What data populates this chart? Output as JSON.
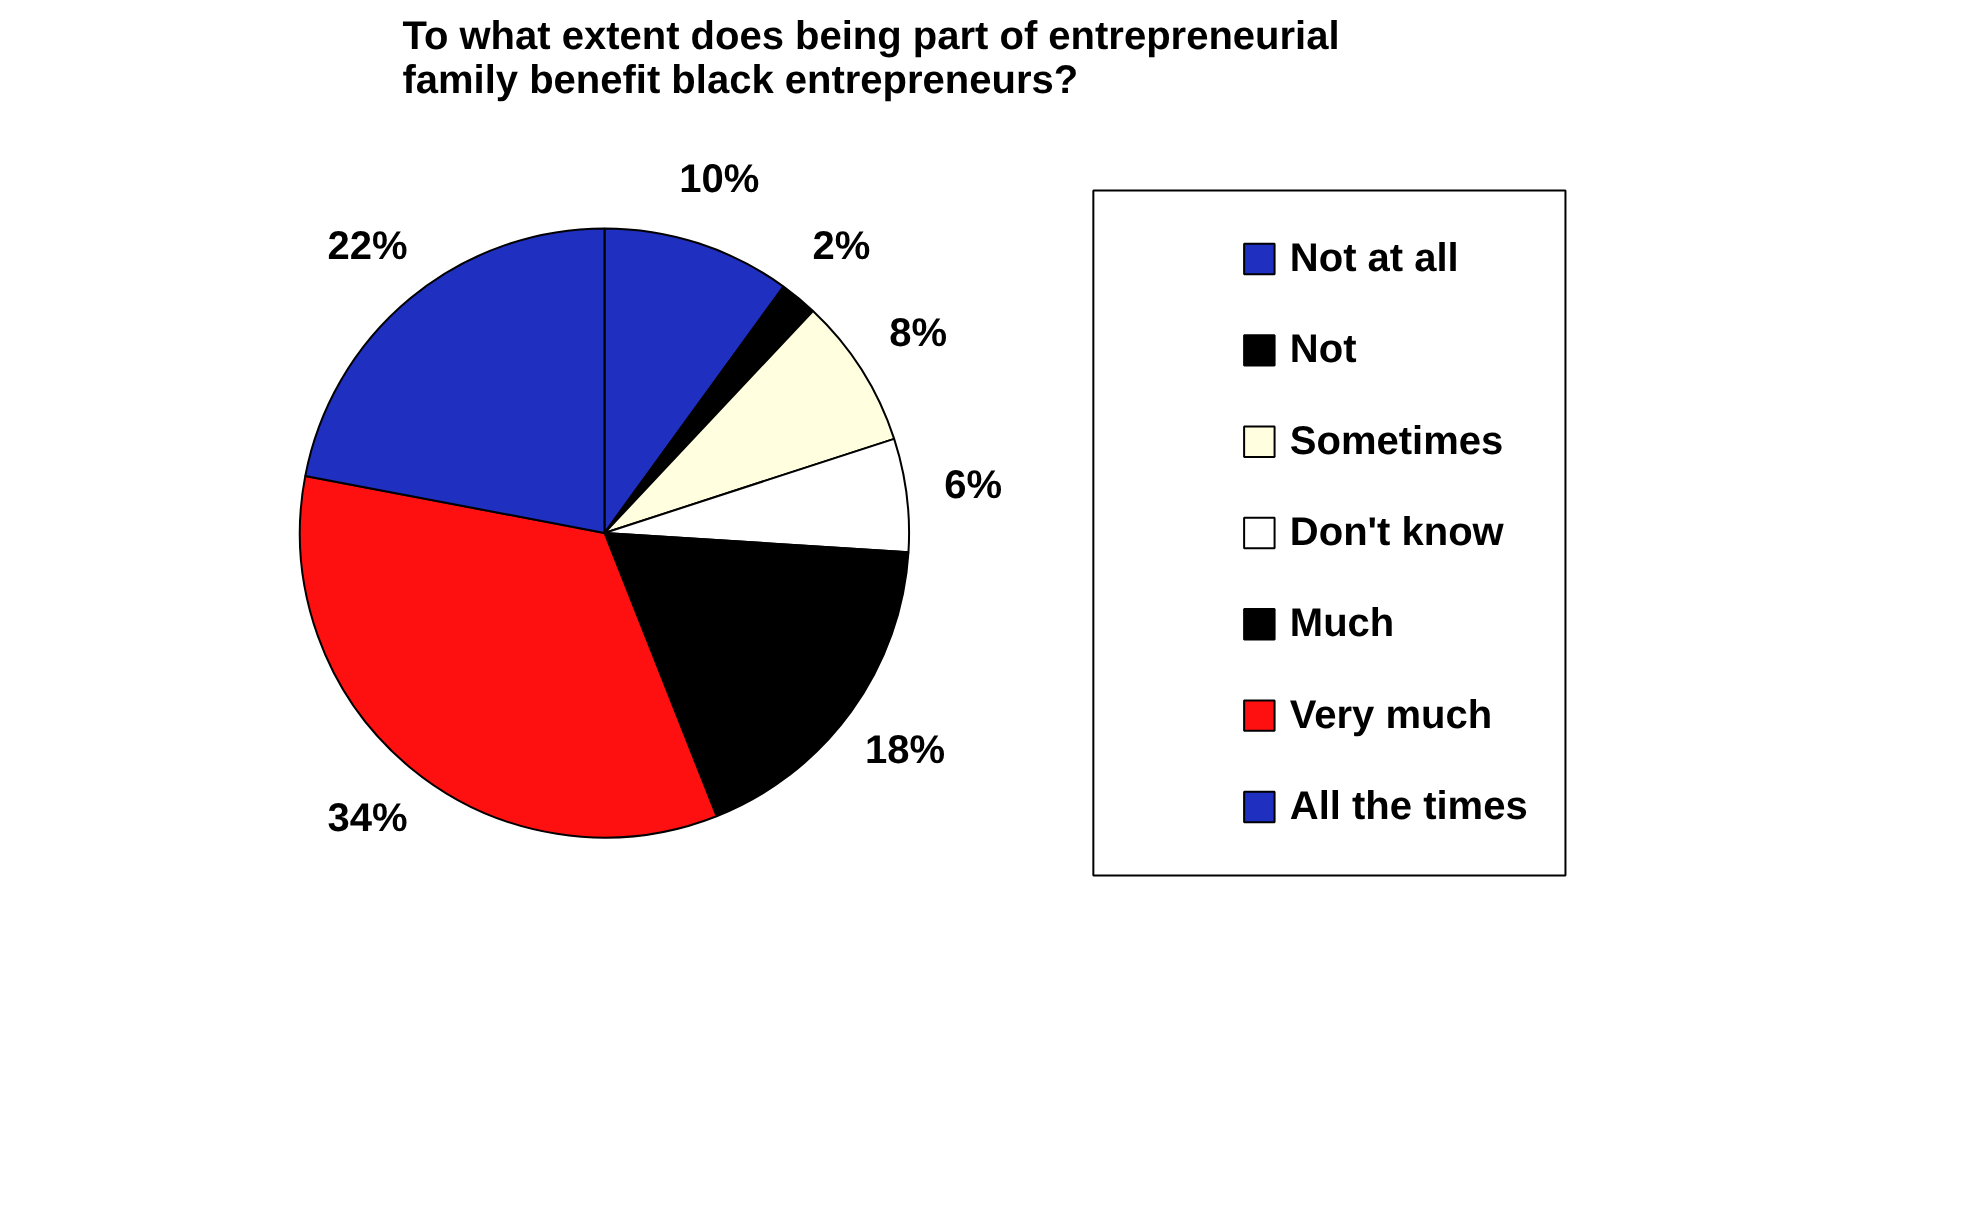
{
  "chart_data": {
    "type": "pie",
    "title": "To what extent does being part of entrepreneurial family benefit black entrepreneurs?",
    "categories": [
      "Not at all",
      "Not",
      "Sometimes",
      "Don't know",
      "Much",
      "Very much",
      "All the times"
    ],
    "values": [
      10,
      2,
      8,
      6,
      18,
      34,
      22
    ],
    "value_labels": [
      "10%",
      "2%",
      "8%",
      "6%",
      "18%",
      "34%",
      "22%"
    ],
    "colors": [
      "#1f2fbf",
      "#000000",
      "#ffffe0",
      "#ffffff",
      "#000000",
      "#ff1010",
      "#1f2fbf"
    ],
    "legend": "right"
  }
}
